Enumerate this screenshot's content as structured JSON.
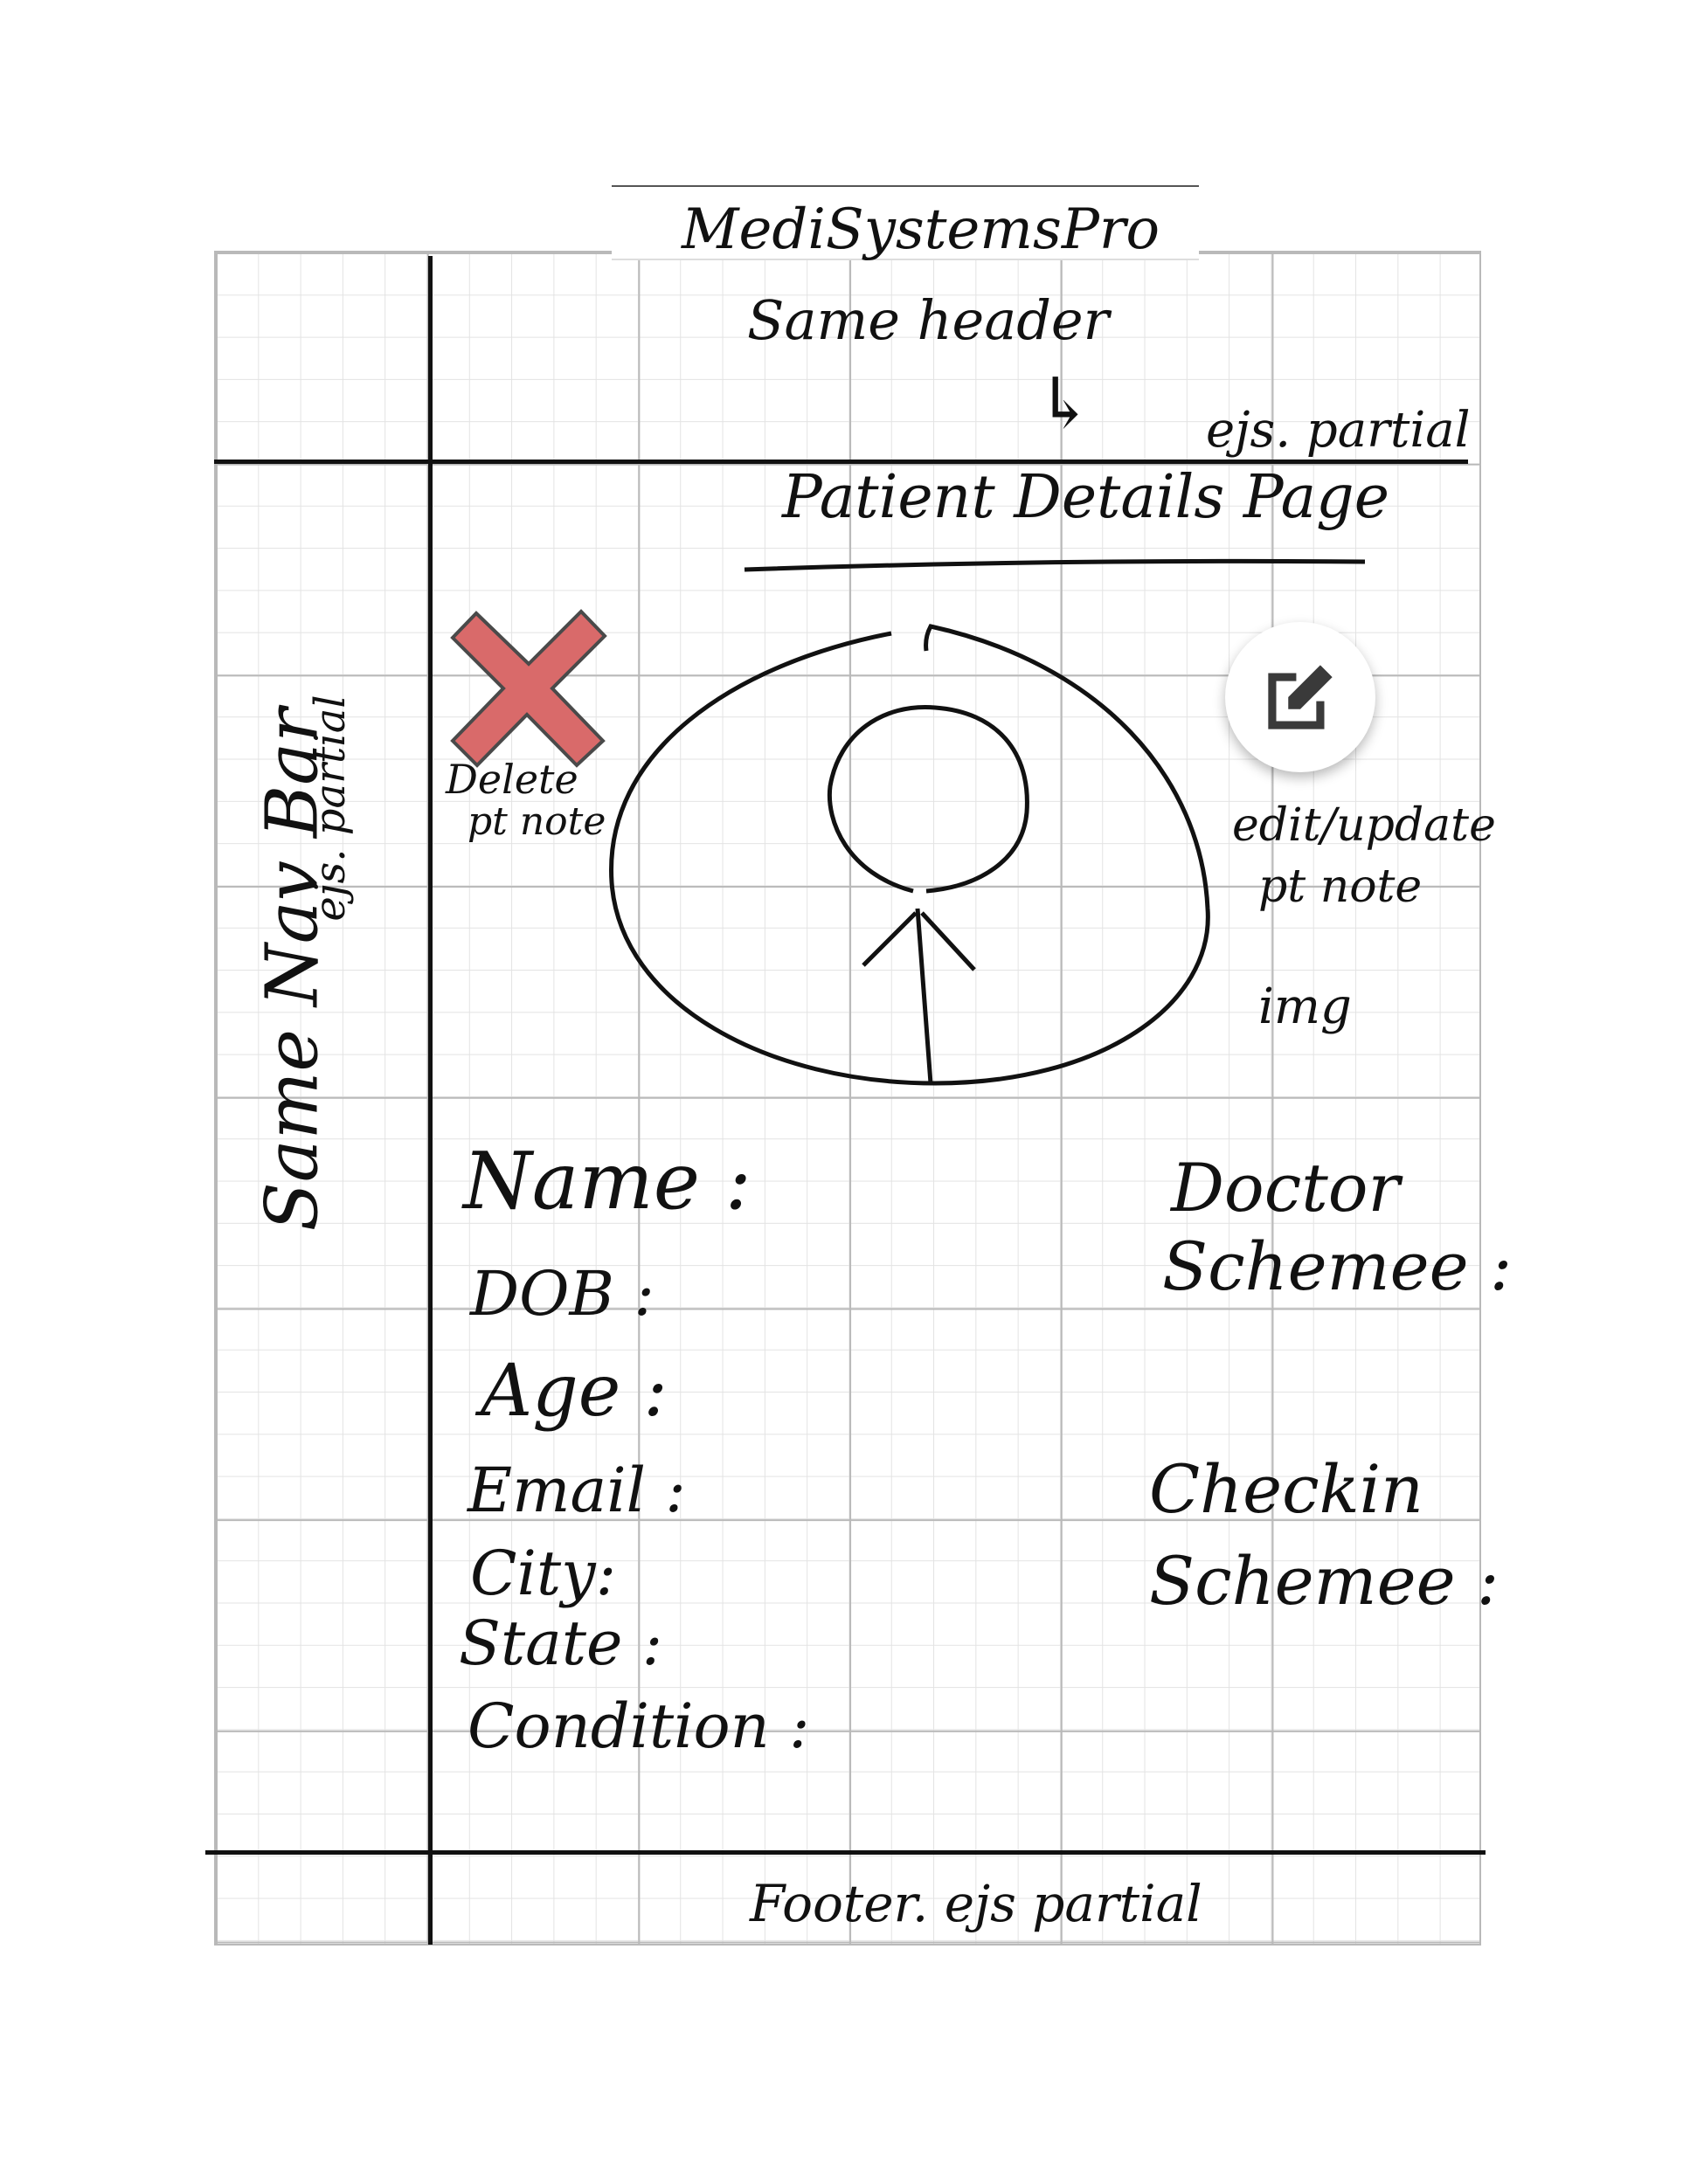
{
  "app_title": "MediSystemsPro",
  "header_note": {
    "line1": "Same   header",
    "arrow": "↳",
    "line2": "ejs. partial"
  },
  "nav_note": {
    "line1": "Same  Nav Bar",
    "line2": "ejs. partial"
  },
  "page_title": "Patient Details Page",
  "delete_note": {
    "line1": "Delete",
    "line2": "pt note"
  },
  "edit_note": {
    "line1": "edit/update",
    "line2": "pt note",
    "line3": "img"
  },
  "fields": [
    "Name  :",
    "DOB  :",
    "Age  :",
    "Email :",
    "City:",
    "State :",
    "Condition :"
  ],
  "right_fields": {
    "doctor_l1": "Doctor",
    "doctor_l2": "Schemee :",
    "checkin_l1": "Checkin",
    "checkin_l2": "Schemee :"
  },
  "footer_note": "Footer. ejs partial",
  "colors": {
    "delete_x": "#d96a6a",
    "ink": "#111111",
    "edit_icon": "#3a3a3a"
  },
  "icons": {
    "delete": "x-mark-icon",
    "edit": "edit-pencil-icon",
    "avatar": "user-avatar-icon"
  }
}
